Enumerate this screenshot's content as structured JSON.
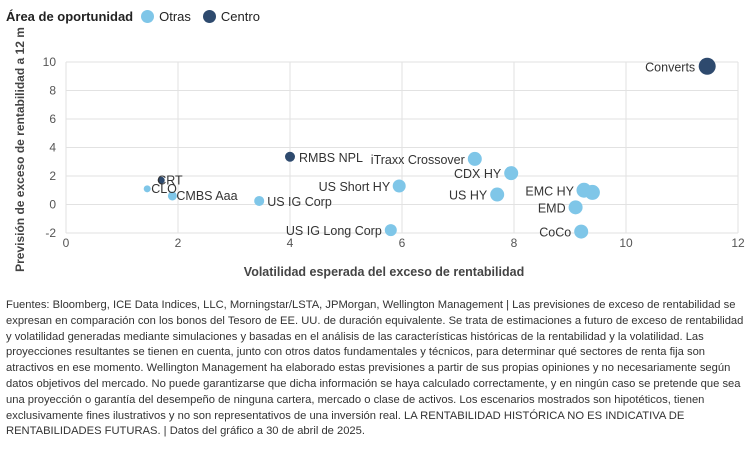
{
  "legend": {
    "title": "Área de oportunidad",
    "items": [
      {
        "label": "Otras",
        "color": "#7fc6e8"
      },
      {
        "label": "Centro",
        "color": "#2e4a6e"
      }
    ]
  },
  "chart_data": {
    "type": "scatter",
    "xlabel": "Volatilidad esperada del exceso de rentabilidad",
    "ylabel": "Previsión de exceso de rentabilidad a 12 m",
    "xlim": [
      0,
      12
    ],
    "ylim": [
      -2,
      10
    ],
    "xticks": [
      "0",
      "2",
      "4",
      "6",
      "8",
      "10",
      "12"
    ],
    "yticks": [
      "-2",
      "0",
      "2",
      "4",
      "6",
      "8",
      "10"
    ],
    "grid": true,
    "series": [
      {
        "name": "Otras",
        "color": "#7fc6e8",
        "points": [
          {
            "label": "CLO",
            "x": 1.45,
            "y": 1.1
          },
          {
            "label": "CMBS Aaa",
            "x": 1.9,
            "y": 0.6
          },
          {
            "label": "US IG Corp",
            "x": 3.45,
            "y": 0.25
          },
          {
            "label": "US IG Long Corp",
            "x": 5.8,
            "y": -1.8
          },
          {
            "label": "US Short HY",
            "x": 5.95,
            "y": 1.3
          },
          {
            "label": "iTraxx Crossover",
            "x": 7.3,
            "y": 3.2
          },
          {
            "label": "US HY",
            "x": 7.7,
            "y": 0.7
          },
          {
            "label": "CDX HY",
            "x": 7.95,
            "y": 2.2
          },
          {
            "label": "EMD",
            "x": 9.1,
            "y": -0.2
          },
          {
            "label": "CoCo",
            "x": 9.2,
            "y": -1.9
          },
          {
            "label": "EMC HY",
            "x": 9.25,
            "y": 1.0
          },
          {
            "label": "",
            "x": 9.4,
            "y": 0.85
          }
        ]
      },
      {
        "name": "Centro",
        "color": "#2e4a6e",
        "points": [
          {
            "label": "CRT",
            "x": 1.7,
            "y": 1.7
          },
          {
            "label": "RMBS NPL",
            "x": 4.0,
            "y": 3.35
          },
          {
            "label": "Converts",
            "x": 11.45,
            "y": 9.7
          }
        ]
      }
    ]
  },
  "footnote": "Fuentes: Bloomberg, ICE Data Indices, LLC, Morningstar/LSTA, JPMorgan, Wellington Management  |  Las previsiones de exceso de rentabilidad se expresan en comparación con los bonos del Tesoro de EE. UU. de duración equivalente. Se trata de estimaciones a futuro de exceso de rentabilidad y volatilidad generadas mediante simulaciones y basadas en el análisis de las características históricas de la rentabilidad y la volatilidad. Las proyecciones resultantes se tienen en cuenta, junto con otros datos fundamentales y técnicos, para determinar qué sectores de renta fija son atractivos en ese momento. Wellington Management ha elaborado estas previsiones a partir de sus propias opiniones y no necesariamente según datos objetivos del mercado. No puede garantizarse que dicha información se haya calculado correctamente, y en ningún caso se pretende que sea una proyección o garantía del desempeño de ninguna cartera, mercado o clase de activos. Los escenarios mostrados son hipotéticos, tienen exclusivamente fines ilustrativos y no son representativos de una inversión real. LA RENTABILIDAD HISTÓRICA NO ES INDICATIVA DE RENTABILIDADES FUTURAS.  |  Datos del gráfico a 30 de abril de 2025."
}
